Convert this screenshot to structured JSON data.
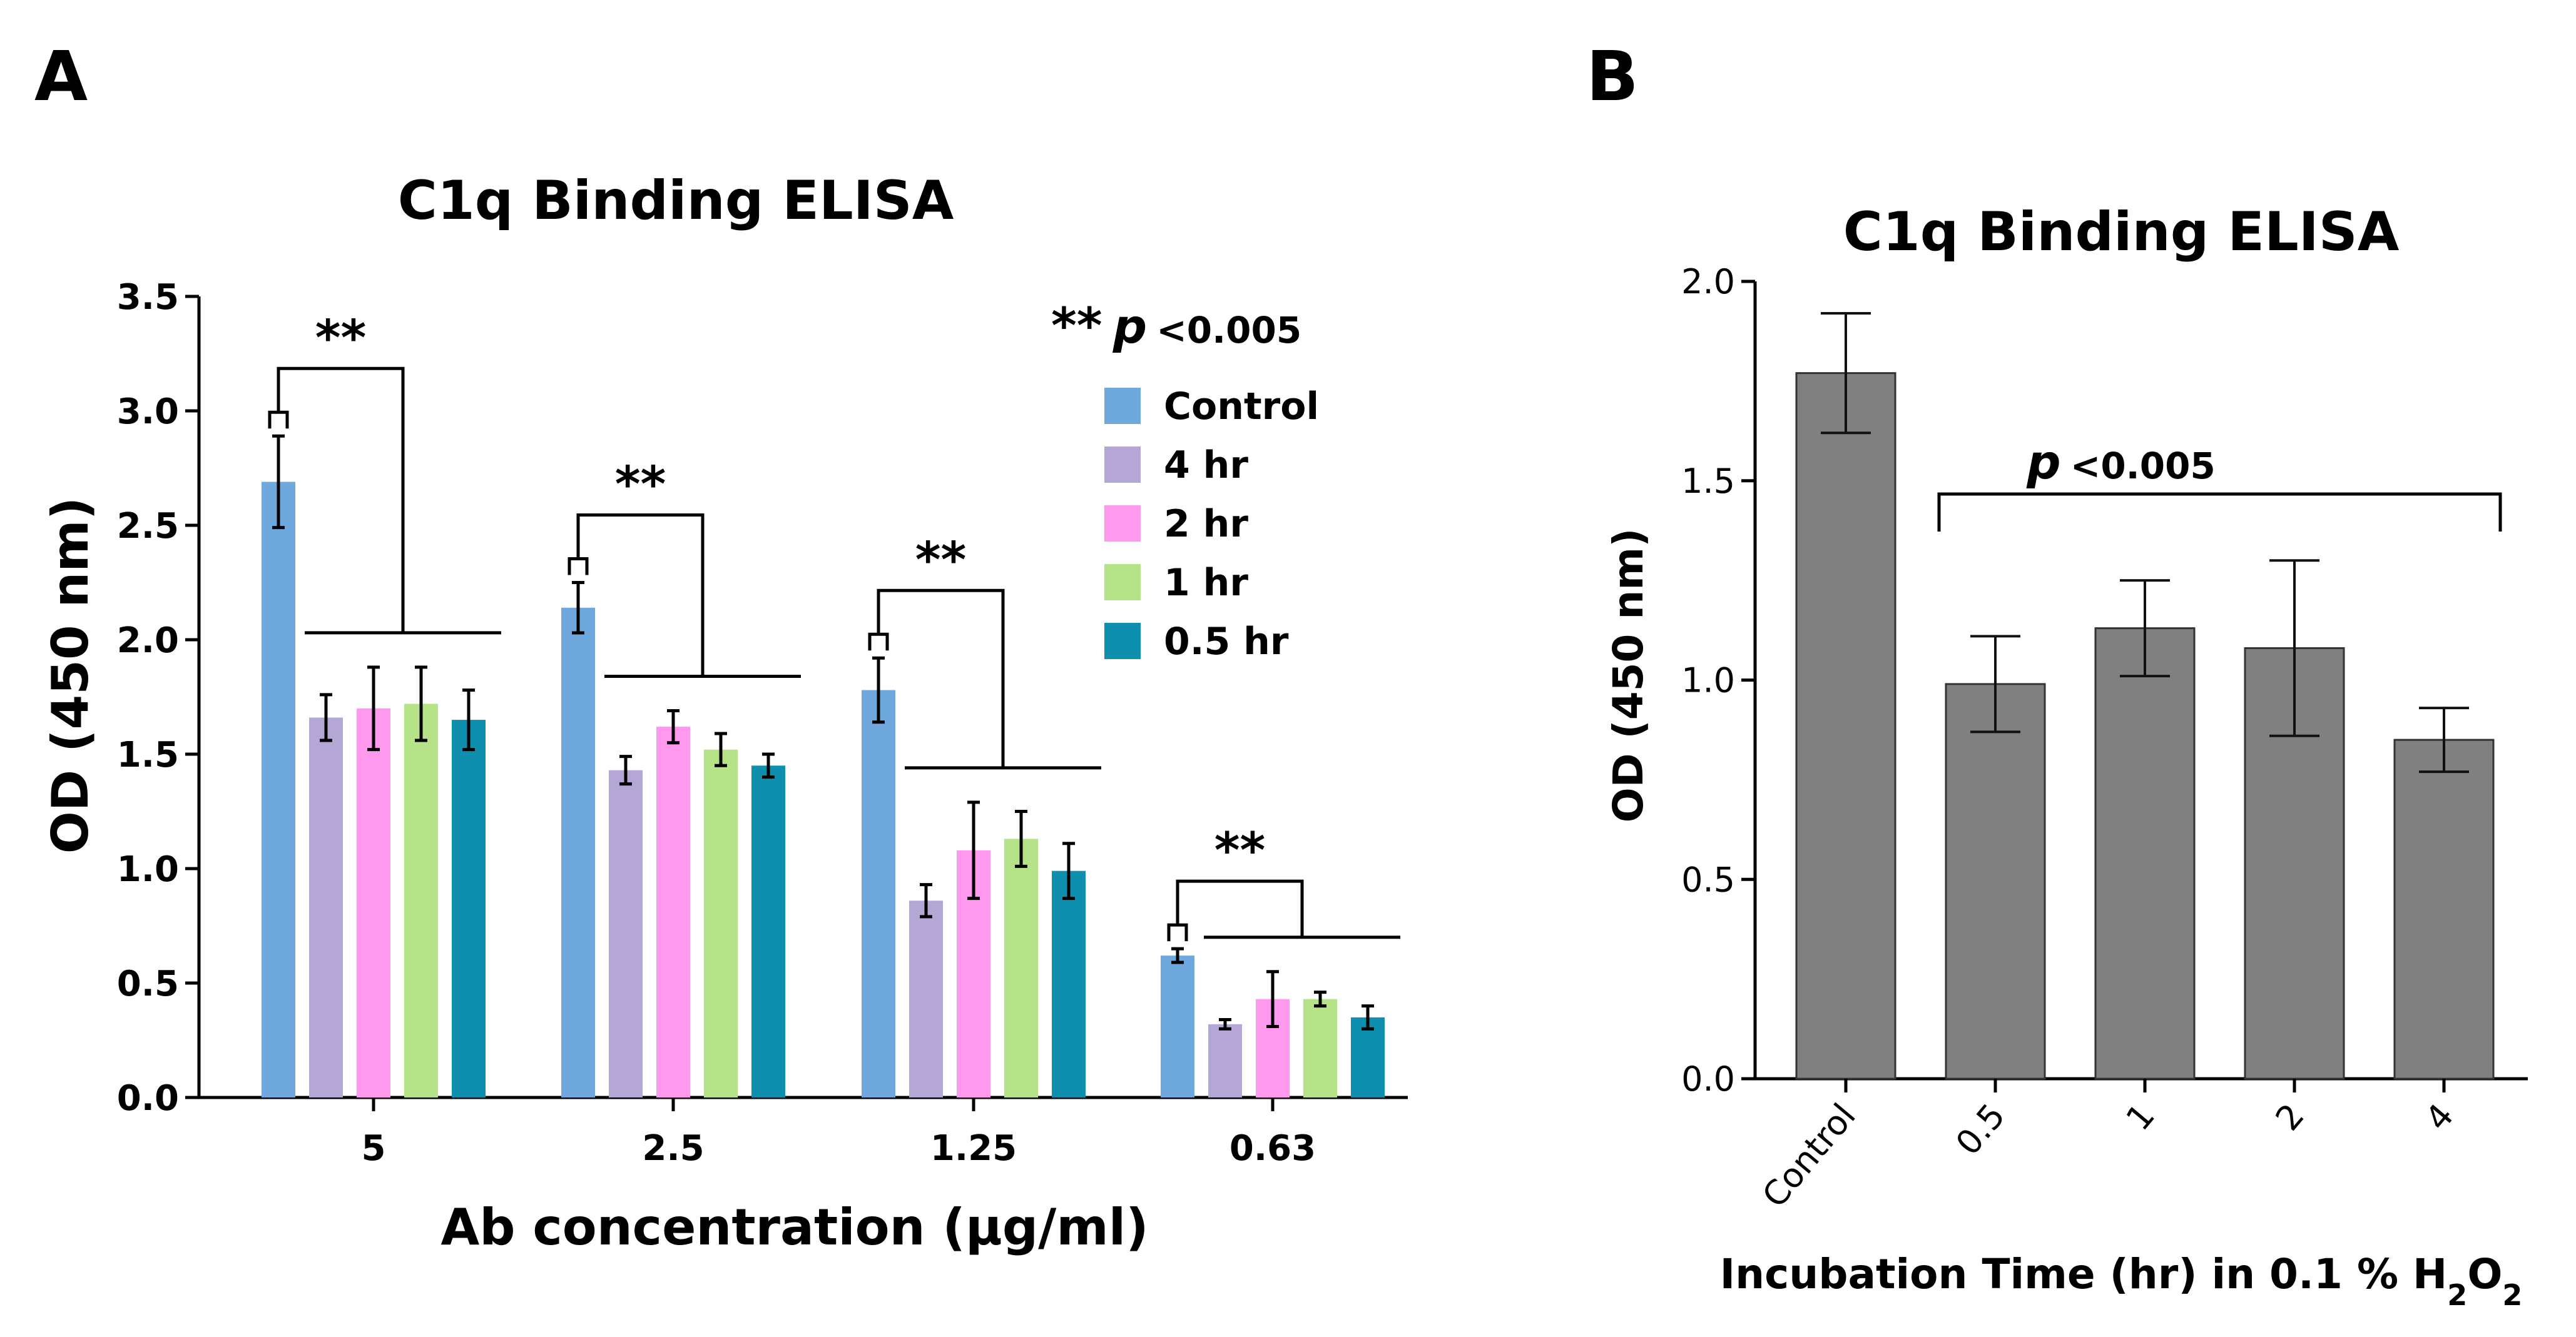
{
  "panels": {
    "a_label": "A",
    "b_label": "B"
  },
  "chart_data": [
    {
      "type": "bar",
      "title": "C1q Binding ELISA",
      "xlabel": "Ab concentration (μg/ml)",
      "ylabel": "OD (450 nm)",
      "ylim": [
        0,
        3.5
      ],
      "yticks": [
        "0.0",
        "0.5",
        "1.0",
        "1.5",
        "2.0",
        "2.5",
        "3.0",
        "3.5"
      ],
      "categories": [
        "5",
        "2.5",
        "1.25",
        "0.63"
      ],
      "legend_title": {
        "stars": "**",
        "p": "p",
        "rest": "<0.005"
      },
      "legend_position": "top-right",
      "series": [
        {
          "name": "Control",
          "color": "#6fa8dc",
          "values": [
            2.69,
            2.14,
            1.78,
            0.62
          ],
          "errors": [
            0.2,
            0.11,
            0.14,
            0.03
          ]
        },
        {
          "name": "4 hr",
          "color": "#b4a7d6",
          "values": [
            1.66,
            1.43,
            0.86,
            0.32
          ],
          "errors": [
            0.1,
            0.06,
            0.07,
            0.02
          ]
        },
        {
          "name": "2 hr",
          "color": "#ff99ee",
          "values": [
            1.7,
            1.62,
            1.08,
            0.43
          ],
          "errors": [
            0.18,
            0.07,
            0.21,
            0.12
          ]
        },
        {
          "name": "1 hr",
          "color": "#b6e388",
          "values": [
            1.72,
            1.52,
            1.13,
            0.43
          ],
          "errors": [
            0.16,
            0.07,
            0.12,
            0.03
          ]
        },
        {
          "name": "0.5 hr",
          "color": "#0e8fad",
          "values": [
            1.65,
            1.45,
            0.99,
            0.35
          ],
          "errors": [
            0.13,
            0.05,
            0.12,
            0.05
          ]
        }
      ],
      "significance": [
        "**",
        "**",
        "**",
        "**"
      ]
    },
    {
      "type": "bar",
      "title": "C1q Binding ELISA",
      "xlabel": {
        "main": "Incubation Time (hr) in 0.1 % H",
        "sub1": "2",
        "mid": "O",
        "sub2": "2"
      },
      "ylabel": "OD (450 nm)",
      "ylim": [
        0,
        2.0
      ],
      "yticks": [
        "0.0",
        "0.5",
        "1.0",
        "1.5",
        "2.0"
      ],
      "categories": [
        "Control",
        "0.5",
        "1",
        "2",
        "4"
      ],
      "color": "#808080",
      "values": [
        1.77,
        0.99,
        1.13,
        1.08,
        0.85
      ],
      "errors": [
        0.15,
        0.12,
        0.12,
        0.22,
        0.08
      ],
      "annotation": {
        "p": "p",
        "rest": "<0.005"
      }
    }
  ]
}
